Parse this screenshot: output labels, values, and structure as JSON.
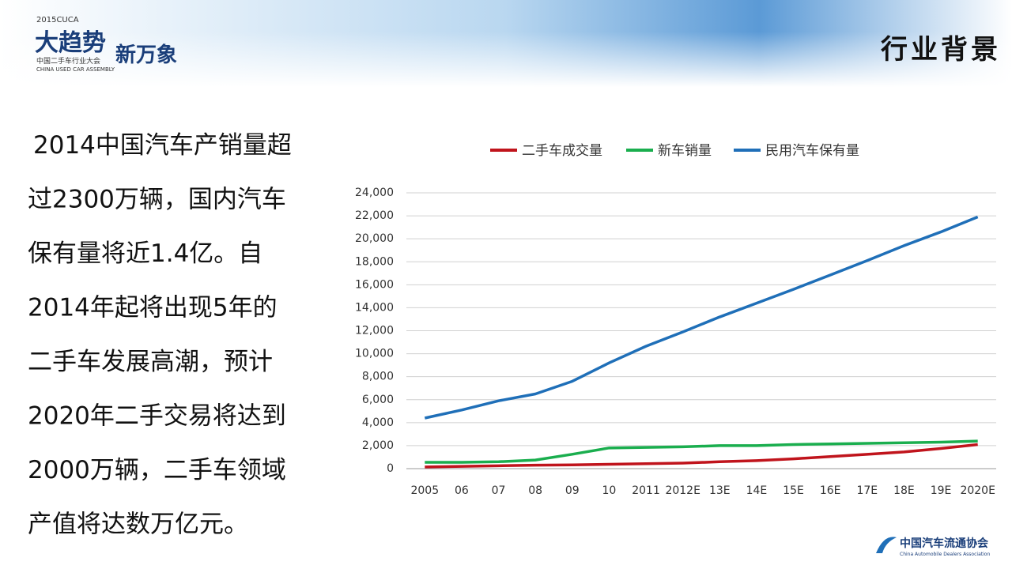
{
  "header": {
    "event_year": "2015CUCA",
    "slogan_a": "大趋势",
    "slogan_b": "新万象",
    "event_cn": "中国二手车行业大会",
    "event_en": "CHINA USED CAR ASSEMBLY",
    "title": "行业背景"
  },
  "body": {
    "lines": [
      "2014中国汽车产销量超",
      "过2300万辆，国内汽车",
      "保有量将近1.4亿。自",
      "2014年起将出现5年的",
      "二手车发展高潮，预计",
      "2020年二手交易将达到",
      "2000万辆，二手车领域",
      "产值将达数万亿元。"
    ]
  },
  "footer": {
    "org_cn": "中国汽车流通协会",
    "org_en": "China Automobile Dealers Association"
  },
  "chart_data": {
    "type": "line",
    "categories": [
      "2005",
      "06",
      "07",
      "08",
      "09",
      "10",
      "2011",
      "2012E",
      "13E",
      "14E",
      "15E",
      "16E",
      "17E",
      "18E",
      "19E",
      "2020E"
    ],
    "series": [
      {
        "name": "二手车成交量",
        "color": "#c0141c",
        "values": [
          150,
          200,
          250,
          300,
          330,
          380,
          430,
          480,
          600,
          700,
          850,
          1050,
          1250,
          1450,
          1750,
          2100
        ]
      },
      {
        "name": "新车销量",
        "color": "#1aae4e",
        "values": [
          550,
          550,
          600,
          750,
          1250,
          1800,
          1850,
          1900,
          2000,
          2000,
          2100,
          2150,
          2200,
          2250,
          2300,
          2400
        ]
      },
      {
        "name": "民用汽车保有量",
        "color": "#1f6fb8",
        "values": [
          4400,
          5100,
          5900,
          6500,
          7600,
          9200,
          10650,
          11900,
          13200,
          14400,
          15600,
          16850,
          18100,
          19400,
          20600,
          21900
        ]
      }
    ],
    "ylim": [
      0,
      24000
    ],
    "yticks": [
      0,
      {
        "value": 2000,
        "label": "2,000"
      },
      {
        "value": 4000,
        "label": "4,000"
      },
      {
        "value": 6000,
        "label": "6,000"
      },
      {
        "value": 8000,
        "label": "8,000"
      },
      {
        "value": 10000,
        "label": "10,000"
      },
      {
        "value": 12000,
        "label": "12,000"
      },
      {
        "value": 14000,
        "label": "14,000"
      },
      {
        "value": 16000,
        "label": "16,000"
      },
      {
        "value": 18000,
        "label": "18,000"
      },
      {
        "value": 20000,
        "label": "20,000"
      },
      {
        "value": 22000,
        "label": "22,000"
      },
      {
        "value": 24000,
        "label": "24,000"
      }
    ],
    "grid": true,
    "legend": "top"
  }
}
